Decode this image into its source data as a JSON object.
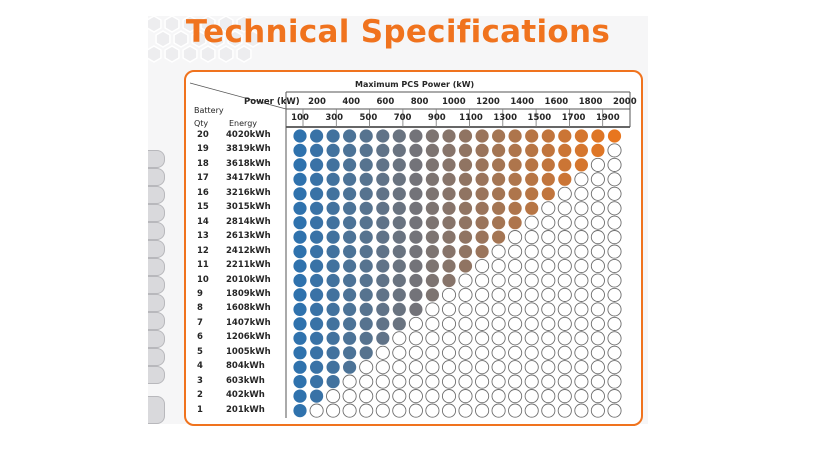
{
  "title": "Technical Specifications",
  "table": {
    "top_title": "Maximum PCS Power (kW)",
    "power_label": "Power (kW)",
    "battery_label": "Battery",
    "qty_label": "Qty",
    "energy_label": "Energy",
    "power_top_row": [
      "200",
      "400",
      "600",
      "800",
      "1000",
      "1200",
      "1400",
      "1600",
      "1800",
      "2000"
    ],
    "power_bottom_row": [
      "100",
      "300",
      "500",
      "700",
      "900",
      "1100",
      "1300",
      "1500",
      "1700",
      "1900"
    ],
    "rows": [
      {
        "qty": "20",
        "energy": "4020kWh"
      },
      {
        "qty": "19",
        "energy": "3819kWh"
      },
      {
        "qty": "18",
        "energy": "3618kWh"
      },
      {
        "qty": "17",
        "energy": "3417kWh"
      },
      {
        "qty": "16",
        "energy": "3216kWh"
      },
      {
        "qty": "15",
        "energy": "3015kWh"
      },
      {
        "qty": "14",
        "energy": "2814kWh"
      },
      {
        "qty": "13",
        "energy": "2613kWh"
      },
      {
        "qty": "12",
        "energy": "2412kWh"
      },
      {
        "qty": "11",
        "energy": "2211kWh"
      },
      {
        "qty": "10",
        "energy": "2010kWh"
      },
      {
        "qty": "9",
        "energy": "1809kWh"
      },
      {
        "qty": "8",
        "energy": "1608kWh"
      },
      {
        "qty": "7",
        "energy": "1407kWh"
      },
      {
        "qty": "6",
        "energy": "1206kWh"
      },
      {
        "qty": "5",
        "energy": "1005kWh"
      },
      {
        "qty": "4",
        "energy": "804kWh"
      },
      {
        "qty": "3",
        "energy": "603kWh"
      },
      {
        "qty": "2",
        "energy": "402kWh"
      },
      {
        "qty": "1",
        "energy": "201kWh"
      }
    ]
  },
  "colors": {
    "accent": "#f0731e",
    "dot_blue": "#2f72ad",
    "dot_orange": "#e8761f",
    "dot_empty_stroke": "#6e6e6e",
    "text": "#262626"
  }
}
